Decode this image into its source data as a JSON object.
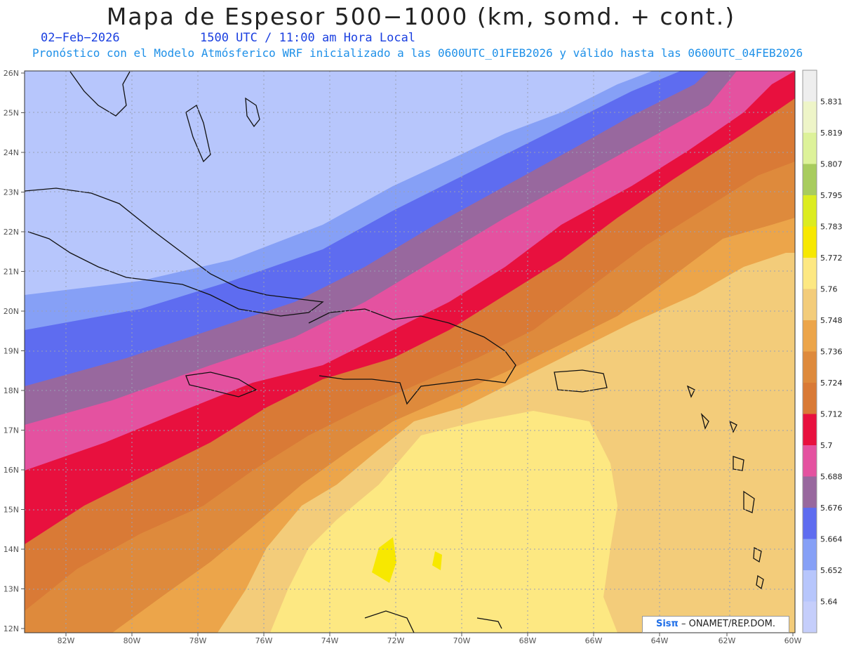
{
  "header": {
    "title": "Mapa de Espesor 500−1000 (km, somd. + cont.)",
    "date": "02−Feb−2026",
    "time": "1500 UTC / 11:00 am Hora Local",
    "subtitle": "Pronóstico con el Modelo Atmósferico WRF inicializado a las 0600UTC_01FEB2026 y válido hasta las  0600UTC_04FEB2026"
  },
  "map": {
    "variable": "500-1000 hPa thickness",
    "units": "km",
    "lat_labels": [
      "26N",
      "25N",
      "24N",
      "23N",
      "22N",
      "21N",
      "20N",
      "19N",
      "18N",
      "17N",
      "16N",
      "15N",
      "14N",
      "13N",
      "12N"
    ],
    "lon_labels": [
      "82W",
      "80W",
      "78W",
      "76W",
      "74W",
      "72W",
      "70W",
      "68W",
      "66W",
      "64W",
      "62W",
      "60W"
    ],
    "lat_range": [
      12,
      26
    ],
    "lon_range": [
      -83.3,
      -60
    ],
    "gridlines": true
  },
  "legend": {
    "levels": [
      "5.831",
      "5.819",
      "5.807",
      "5.795",
      "5.783",
      "5.772",
      "5.76",
      "5.748",
      "5.736",
      "5.724",
      "5.712",
      "5.7",
      "5.688",
      "5.676",
      "5.664",
      "5.652",
      "5.64"
    ],
    "colors": [
      "#eeeeee",
      "#eef5c8",
      "#ddf29a",
      "#a8cc5e",
      "#dcec20",
      "#f7e800",
      "#fde882",
      "#f3cc7a",
      "#eca54a",
      "#de8a3c",
      "#d97a36",
      "#e8103e",
      "#e452a0",
      "#98689e",
      "#5e6cf0",
      "#86a0f6",
      "#b7c6fc",
      "#c5cefb"
    ],
    "top_color": "#eeeeee"
  },
  "credit": {
    "brand": "Sisπ",
    "text": "– ONAMET/REP.DOM."
  }
}
